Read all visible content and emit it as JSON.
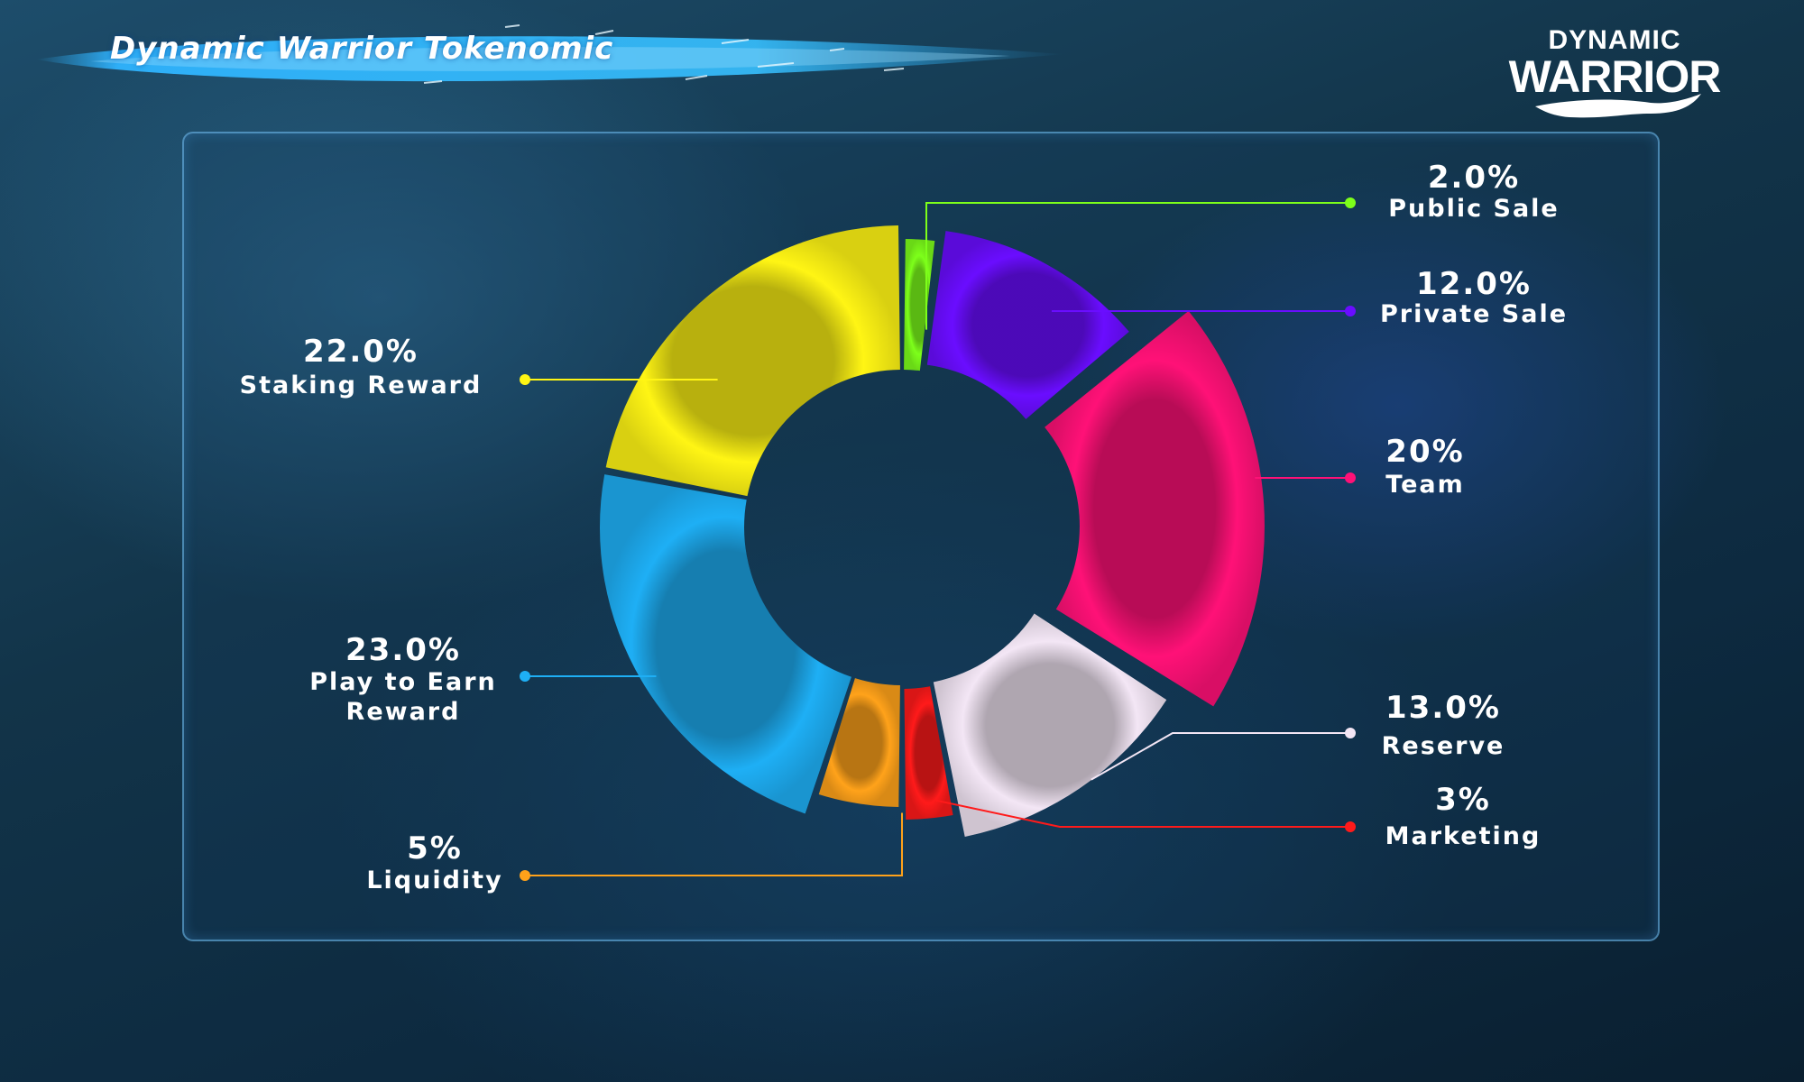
{
  "header": {
    "title": "Dynamic Warrior Tokenomic",
    "logo_line1": "DYNAMIC",
    "logo_line2": "WARRIOR"
  },
  "colors": {
    "banner": "#2fb4ff",
    "panel_border": "#78c8ff"
  },
  "chart_data": {
    "type": "pie",
    "variant": "donut",
    "title": "",
    "slices": [
      {
        "name": "Public Sale",
        "label": "2.0%",
        "value": 2.0,
        "color": "#7dff1a",
        "side": "right"
      },
      {
        "name": "Private Sale",
        "label": "12.0%",
        "value": 12.0,
        "color": "#6a0dff",
        "side": "right"
      },
      {
        "name": "Team",
        "label": "20%",
        "value": 20.0,
        "color": "#ff1177",
        "side": "right"
      },
      {
        "name": "Reserve",
        "label": "13.0%",
        "value": 13.0,
        "color": "#f3e6f5",
        "side": "right"
      },
      {
        "name": "Marketing",
        "label": "3%",
        "value": 3.0,
        "color": "#ff1a1a",
        "side": "right"
      },
      {
        "name": "Liquidity",
        "label": "5%",
        "value": 5.0,
        "color": "#ffa21a",
        "side": "left"
      },
      {
        "name": "Play to Earn Reward",
        "label": "23.0%",
        "value": 23.0,
        "color": "#1eaff5",
        "side": "left"
      },
      {
        "name": "Staking Reward",
        "label": "22.0%",
        "value": 22.0,
        "color": "#fff514",
        "side": "left"
      }
    ],
    "legend": "callouts"
  }
}
